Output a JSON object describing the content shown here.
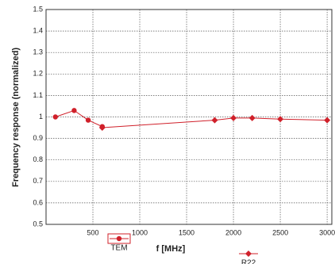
{
  "chart_data": {
    "type": "line",
    "xlabel": "f [MHz]",
    "ylabel": "Frequency response (normalized)",
    "series": [
      {
        "name": "TEM",
        "color": "#d0202a",
        "marker": "circle",
        "x": [
          100,
          300,
          450,
          600
        ],
        "values": [
          1.0,
          1.03,
          0.985,
          0.955
        ]
      },
      {
        "name": "R22",
        "color": "#d0202a",
        "marker": "diamond",
        "x": [
          600,
          1800,
          2000,
          2200,
          2500,
          3000
        ],
        "values": [
          0.95,
          0.985,
          0.995,
          0.995,
          0.99,
          0.985
        ]
      }
    ],
    "xlim": [
      0,
      3050
    ],
    "xticks": [
      500,
      1000,
      1500,
      2000,
      2500,
      3000
    ],
    "ylim": [
      0.5,
      1.5
    ],
    "yticks": [
      0.5,
      0.6,
      0.7,
      0.8,
      0.9,
      1.0,
      1.1,
      1.2,
      1.3,
      1.4,
      1.5
    ],
    "grid": true
  }
}
